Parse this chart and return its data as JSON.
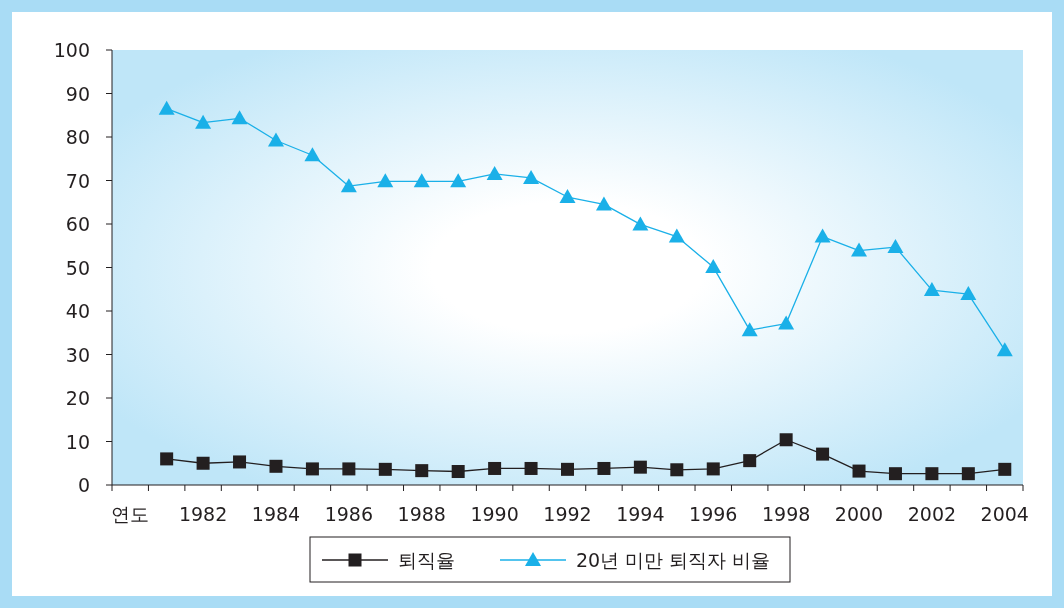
{
  "chart_data": {
    "type": "line",
    "categories": [
      "연도",
      null,
      "1982",
      null,
      "1984",
      null,
      "1986",
      null,
      "1988",
      null,
      "1990",
      null,
      "1992",
      null,
      "1994",
      null,
      "1996",
      null,
      "1998",
      null,
      "2000",
      null,
      "2002",
      null,
      "2004"
    ],
    "series": [
      {
        "name": "퇴직율",
        "color": "#231f20",
        "marker": "square",
        "values": [
          null,
          6,
          5,
          5.3,
          4.3,
          3.7,
          3.7,
          3.6,
          3.3,
          3.1,
          3.8,
          3.8,
          3.6,
          3.8,
          4.1,
          3.5,
          3.7,
          5.6,
          10.4,
          7.1,
          3.2,
          2.6,
          2.6,
          2.6,
          3.6
        ]
      },
      {
        "name": "20년 미만 퇴직자 비율",
        "color": "#1ab0e8",
        "marker": "triangle",
        "values": [
          null,
          86.5,
          83.3,
          84.3,
          79.2,
          75.8,
          68.7,
          69.8,
          69.8,
          69.8,
          71.5,
          70.6,
          66.2,
          64.5,
          59.9,
          57.1,
          50.1,
          35.6,
          37.1,
          57.1,
          53.9,
          54.7,
          44.8,
          43.9,
          31
        ]
      }
    ],
    "ylim": [
      0,
      100
    ],
    "yticks": [
      0,
      10,
      20,
      30,
      40,
      50,
      60,
      70,
      80,
      90,
      100
    ],
    "legend": "bottom"
  }
}
